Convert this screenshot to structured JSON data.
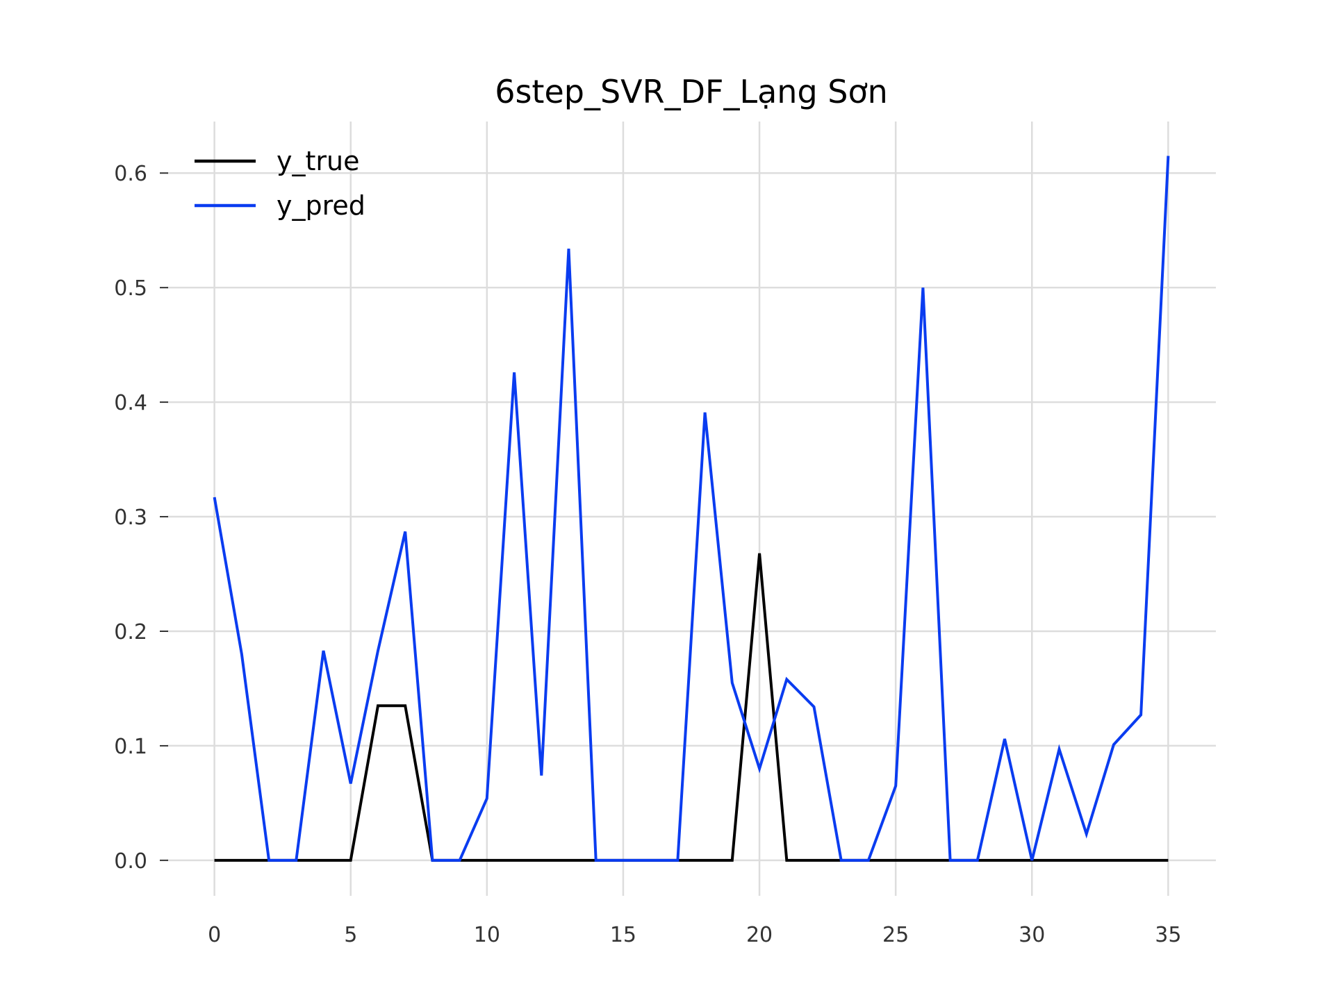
{
  "chart_data": {
    "type": "line",
    "title": "6step_SVR_DF_Lạng Sơn",
    "xlabel": "",
    "ylabel": "",
    "xlim": [
      -1.75,
      36.75
    ],
    "ylim": [
      -0.031,
      0.645
    ],
    "xticks": [
      0,
      5,
      10,
      15,
      20,
      25,
      30,
      35
    ],
    "yticks": [
      0.0,
      0.1,
      0.2,
      0.3,
      0.4,
      0.5,
      0.6
    ],
    "ytick_labels": [
      "0.0",
      "0.1",
      "0.2",
      "0.3",
      "0.4",
      "0.5",
      "0.6"
    ],
    "grid": true,
    "legend_position": "top-left",
    "x": [
      0,
      1,
      2,
      3,
      4,
      5,
      6,
      7,
      8,
      9,
      10,
      11,
      12,
      13,
      14,
      15,
      16,
      17,
      18,
      19,
      20,
      21,
      22,
      23,
      24,
      25,
      26,
      27,
      28,
      29,
      30,
      31,
      32,
      33,
      34,
      35
    ],
    "series": [
      {
        "name": "y_true",
        "color": "#000000",
        "values": [
          0,
          0,
          0,
          0,
          0,
          0,
          0.135,
          0.135,
          0,
          0,
          0,
          0,
          0,
          0,
          0,
          0,
          0,
          0,
          0,
          0,
          0.268,
          0,
          0,
          0,
          0,
          0,
          0,
          0,
          0,
          0,
          0,
          0,
          0,
          0,
          0,
          0
        ]
      },
      {
        "name": "y_pred",
        "color": "#0a3cf0",
        "values": [
          0.317,
          0.18,
          0,
          0,
          0.183,
          0.067,
          0.183,
          0.287,
          0,
          0,
          0.054,
          0.426,
          0.074,
          0.534,
          0,
          0,
          0,
          0,
          0.391,
          0.155,
          0.08,
          0.158,
          0.134,
          0,
          0,
          0.065,
          0.5,
          0,
          0,
          0.106,
          0,
          0.097,
          0.023,
          0.101,
          0.127,
          0.615
        ]
      }
    ]
  }
}
